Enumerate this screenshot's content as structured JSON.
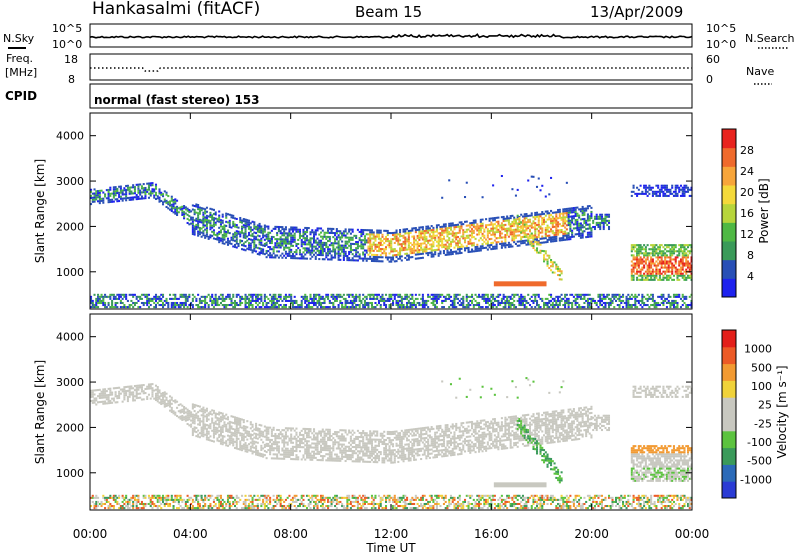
{
  "header": {
    "station": "Hankasalmi (fitACF)",
    "beam": "Beam 15",
    "date": "13/Apr/2009"
  },
  "noise_panel": {
    "left_label": "N.Sky",
    "right_label": "N.Search",
    "right_ticks": [
      "10^5",
      "10^0"
    ],
    "left_ticks": [
      "10^5",
      "10^0"
    ]
  },
  "freq_panel": {
    "left_label_1": "Freq.",
    "left_label_2": "[MHz]",
    "left_ticks": [
      "18",
      "8"
    ],
    "right_label": "Nave",
    "right_ticks": [
      "60",
      "0"
    ]
  },
  "cpid_panel": {
    "label": "CPID",
    "value": "normal (fast stereo) 153"
  },
  "chart_data": [
    {
      "type": "heatmap",
      "name": "power",
      "ylabel": "Slant Range [km]",
      "ylim": [
        180,
        4500
      ],
      "yticks": [
        "1000",
        "2000",
        "3000",
        "4000"
      ],
      "xlim": [
        0,
        24
      ],
      "colorbar": {
        "label": "Power [dB]",
        "ticks": [
          "28",
          "24",
          "20",
          "16",
          "12",
          "8",
          "4"
        ],
        "colors": [
          "#1e22ee",
          "#284fb6",
          "#3a9a59",
          "#4fb844",
          "#b7d53b",
          "#f4d93a",
          "#f7a53a",
          "#ef6a2c",
          "#e8231e"
        ]
      }
    },
    {
      "type": "heatmap",
      "name": "velocity",
      "ylabel": "Slant Range [km]",
      "ylim": [
        180,
        4500
      ],
      "yticks": [
        "1000",
        "2000",
        "3000",
        "4000"
      ],
      "xlim": [
        0,
        24
      ],
      "colorbar": {
        "label": "Velocity [m s⁻¹]",
        "ticks": [
          "1000",
          "500",
          "100",
          "25",
          "-25",
          "-100",
          "-500",
          "-1000"
        ],
        "colors": [
          "#2a3bd4",
          "#2b6ab8",
          "#3a9a5a",
          "#5cc33f",
          "#c8c8c0",
          "#c8c8c0",
          "#f0d23a",
          "#f29a32",
          "#ec5a26",
          "#e31f1a"
        ]
      }
    }
  ],
  "xaxis": {
    "ticks": [
      "00:00",
      "04:00",
      "08:00",
      "12:00",
      "16:00",
      "20:00",
      "00:00"
    ],
    "label": "Time UT"
  }
}
